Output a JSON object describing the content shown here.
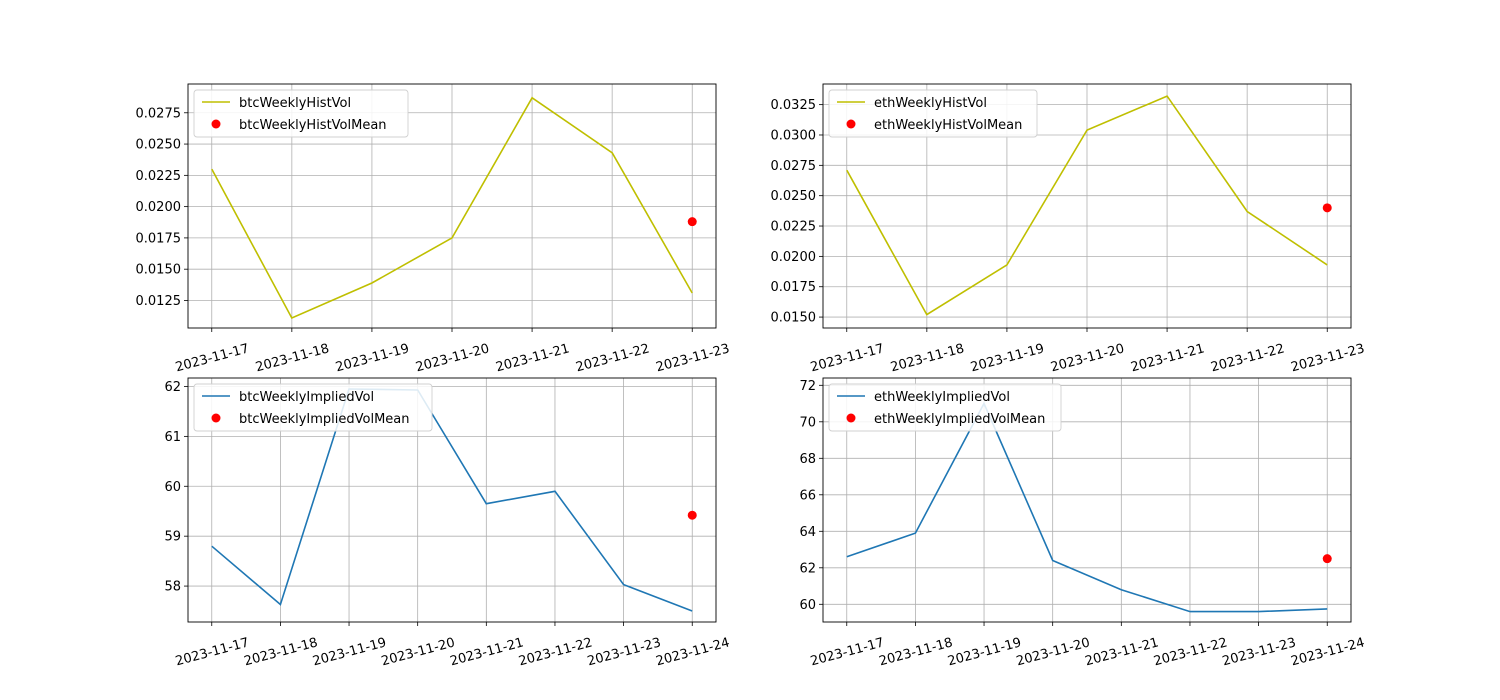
{
  "chart_data": [
    {
      "type": "line",
      "x": [
        "2023-11-17",
        "2023-11-18",
        "2023-11-19",
        "2023-11-20",
        "2023-11-21",
        "2023-11-22",
        "2023-11-23"
      ],
      "series": [
        {
          "name": "btcWeeklyHistVol",
          "kind": "line",
          "color": "#bfbf00",
          "values": [
            0.023,
            0.0111,
            0.0139,
            0.0175,
            0.0287,
            0.0243,
            0.0131
          ]
        }
      ],
      "mean": {
        "name": "btcWeeklyHistVolMean",
        "kind": "scatter",
        "color": "#ff0000",
        "x": "2023-11-23",
        "value": 0.0188
      },
      "ylim": [
        0.0103,
        0.0298
      ],
      "yticks": [
        0.0125,
        0.015,
        0.0175,
        0.02,
        0.0225,
        0.025,
        0.0275
      ],
      "ytick_labels": [
        "0.0125",
        "0.0150",
        "0.0175",
        "0.0200",
        "0.0225",
        "0.0250",
        "0.0275"
      ],
      "grid": true,
      "legend": "upper-left"
    },
    {
      "type": "line",
      "x": [
        "2023-11-17",
        "2023-11-18",
        "2023-11-19",
        "2023-11-20",
        "2023-11-21",
        "2023-11-22",
        "2023-11-23"
      ],
      "series": [
        {
          "name": "ethWeeklyHistVol",
          "kind": "line",
          "color": "#bfbf00",
          "values": [
            0.0271,
            0.0152,
            0.0193,
            0.0304,
            0.0332,
            0.0237,
            0.0193
          ]
        }
      ],
      "mean": {
        "name": "ethWeeklyHistVolMean",
        "kind": "scatter",
        "color": "#ff0000",
        "x": "2023-11-23",
        "value": 0.024
      },
      "ylim": [
        0.0141,
        0.0342
      ],
      "yticks": [
        0.015,
        0.0175,
        0.02,
        0.0225,
        0.025,
        0.0275,
        0.03,
        0.0325
      ],
      "ytick_labels": [
        "0.0150",
        "0.0175",
        "0.0200",
        "0.0225",
        "0.0250",
        "0.0275",
        "0.0300",
        "0.0325"
      ],
      "grid": true,
      "legend": "upper-left"
    },
    {
      "type": "line",
      "x": [
        "2023-11-17",
        "2023-11-18",
        "2023-11-19",
        "2023-11-20",
        "2023-11-21",
        "2023-11-22",
        "2023-11-23",
        "2023-11-24"
      ],
      "series": [
        {
          "name": "btcWeeklyImpliedVol",
          "kind": "line",
          "color": "#1f77b4",
          "values": [
            58.8,
            57.63,
            61.95,
            61.93,
            59.65,
            59.9,
            58.03,
            57.5
          ]
        }
      ],
      "mean": {
        "name": "btcWeeklyImpliedVolMean",
        "kind": "scatter",
        "color": "#ff0000",
        "x": "2023-11-24",
        "value": 59.42
      },
      "ylim": [
        57.28,
        62.17
      ],
      "yticks": [
        58,
        59,
        60,
        61,
        62
      ],
      "ytick_labels": [
        "58",
        "59",
        "60",
        "61",
        "62"
      ],
      "grid": true,
      "legend": "upper-left"
    },
    {
      "type": "line",
      "x": [
        "2023-11-17",
        "2023-11-18",
        "2023-11-19",
        "2023-11-20",
        "2023-11-21",
        "2023-11-22",
        "2023-11-23",
        "2023-11-24"
      ],
      "series": [
        {
          "name": "ethWeeklyImpliedVol",
          "kind": "line",
          "color": "#1f77b4",
          "values": [
            62.6,
            63.9,
            71.0,
            62.4,
            60.8,
            59.6,
            59.6,
            59.75
          ]
        }
      ],
      "mean": {
        "name": "ethWeeklyImpliedVolMean",
        "kind": "scatter",
        "color": "#ff0000",
        "x": "2023-11-24",
        "value": 62.5
      },
      "ylim": [
        59.03,
        72.4
      ],
      "yticks": [
        60,
        62,
        64,
        66,
        68,
        70,
        72
      ],
      "ytick_labels": [
        "60",
        "62",
        "64",
        "66",
        "68",
        "70",
        "72"
      ],
      "grid": true,
      "legend": "upper-left"
    }
  ]
}
